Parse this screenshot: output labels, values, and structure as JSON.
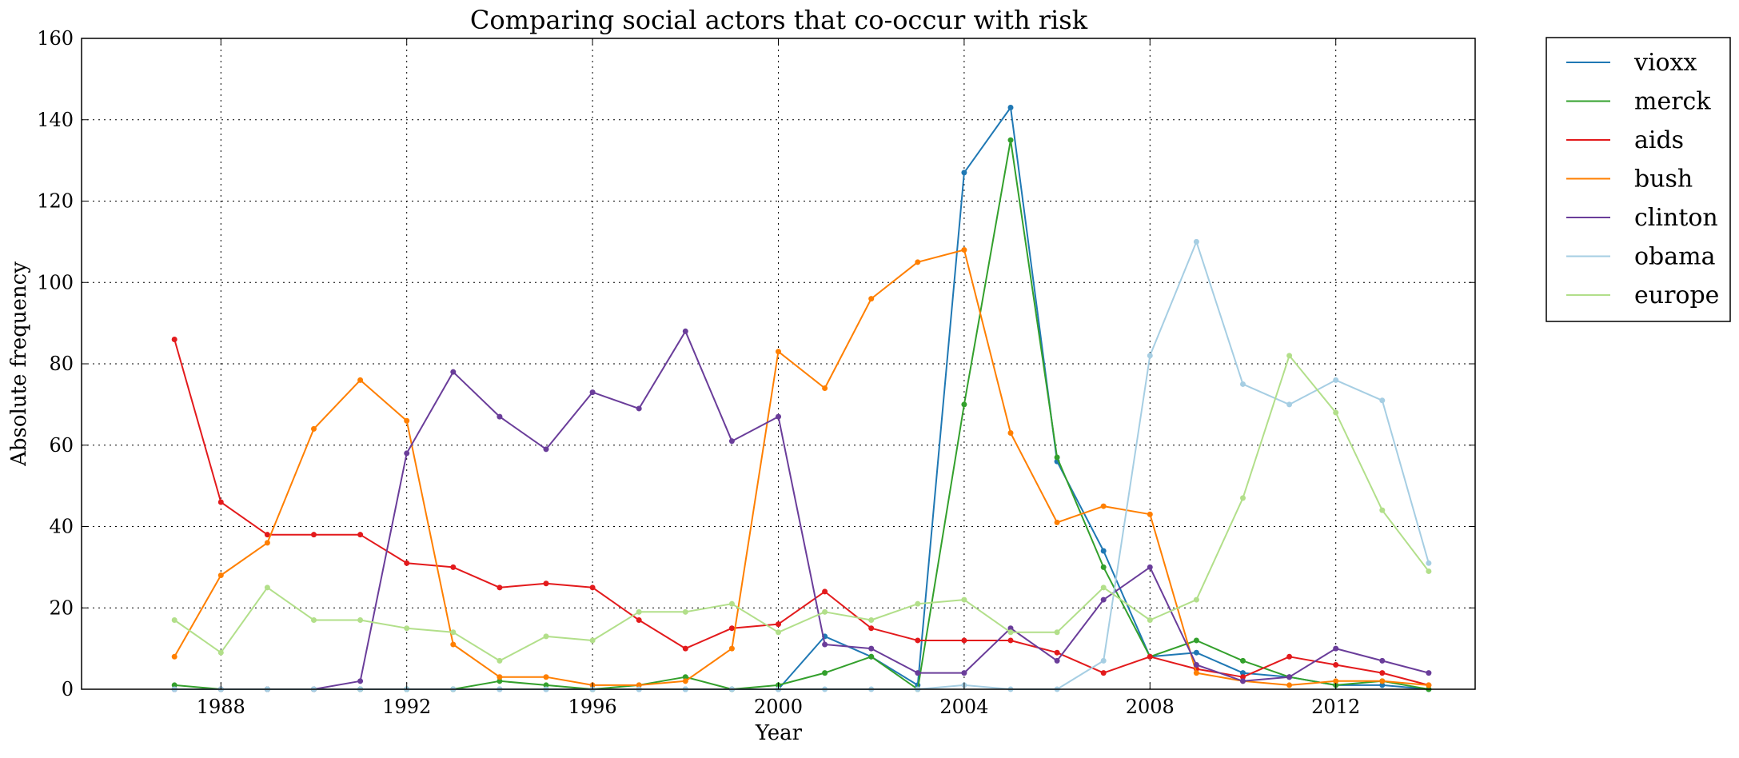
{
  "chart_data": {
    "type": "line",
    "title": "Comparing social actors that co-occur with risk",
    "xlabel": "Year",
    "ylabel": "Absolute frequency",
    "xlim": [
      1985,
      2015
    ],
    "ylim": [
      0,
      160
    ],
    "x_ticks": [
      1988,
      1992,
      1996,
      2000,
      2004,
      2008,
      2012
    ],
    "y_ticks": [
      0,
      20,
      40,
      60,
      80,
      100,
      120,
      140,
      160
    ],
    "grid": true,
    "legend_position": "outside-top-right",
    "x": [
      1987,
      1988,
      1989,
      1990,
      1991,
      1992,
      1993,
      1994,
      1995,
      1996,
      1997,
      1998,
      1999,
      2000,
      2001,
      2002,
      2003,
      2004,
      2005,
      2006,
      2007,
      2008,
      2009,
      2010,
      2011,
      2012,
      2013,
      2014
    ],
    "series": [
      {
        "name": "vioxx",
        "color": "#1f78b4",
        "values": [
          0,
          0,
          0,
          0,
          0,
          0,
          0,
          0,
          0,
          0,
          0,
          0,
          0,
          0,
          13,
          8,
          1,
          127,
          143,
          56,
          34,
          8,
          9,
          4,
          3,
          1,
          1,
          0
        ]
      },
      {
        "name": "merck",
        "color": "#33a02c",
        "values": [
          1,
          0,
          0,
          0,
          0,
          0,
          0,
          2,
          1,
          0,
          1,
          3,
          0,
          1,
          4,
          8,
          0,
          70,
          135,
          57,
          30,
          8,
          12,
          7,
          3,
          1,
          2,
          0
        ]
      },
      {
        "name": "aids",
        "color": "#e31a1c",
        "values": [
          86,
          46,
          38,
          38,
          38,
          31,
          30,
          25,
          26,
          25,
          17,
          10,
          15,
          16,
          24,
          15,
          12,
          12,
          12,
          9,
          4,
          8,
          5,
          3,
          8,
          6,
          4,
          1
        ]
      },
      {
        "name": "bush",
        "color": "#ff7f00",
        "values": [
          8,
          28,
          36,
          64,
          76,
          66,
          11,
          3,
          3,
          1,
          1,
          2,
          10,
          83,
          74,
          96,
          105,
          108,
          63,
          41,
          45,
          43,
          4,
          2,
          1,
          2,
          2,
          1
        ]
      },
      {
        "name": "clinton",
        "color": "#6a3d9a",
        "values": [
          0,
          0,
          0,
          0,
          2,
          58,
          78,
          67,
          59,
          73,
          69,
          88,
          61,
          67,
          11,
          10,
          4,
          4,
          15,
          7,
          22,
          30,
          6,
          2,
          3,
          10,
          7,
          4
        ]
      },
      {
        "name": "obama",
        "color": "#a6cee3",
        "values": [
          0,
          0,
          0,
          0,
          0,
          0,
          0,
          0,
          0,
          0,
          0,
          0,
          0,
          0,
          0,
          0,
          0,
          1,
          0,
          0,
          7,
          82,
          110,
          75,
          70,
          76,
          71,
          31
        ]
      },
      {
        "name": "europe",
        "color": "#b2df8a",
        "values": [
          17,
          9,
          25,
          17,
          17,
          15,
          14,
          7,
          13,
          12,
          19,
          19,
          21,
          14,
          19,
          17,
          21,
          22,
          14,
          14,
          25,
          17,
          22,
          47,
          82,
          68,
          44,
          29
        ]
      }
    ]
  }
}
